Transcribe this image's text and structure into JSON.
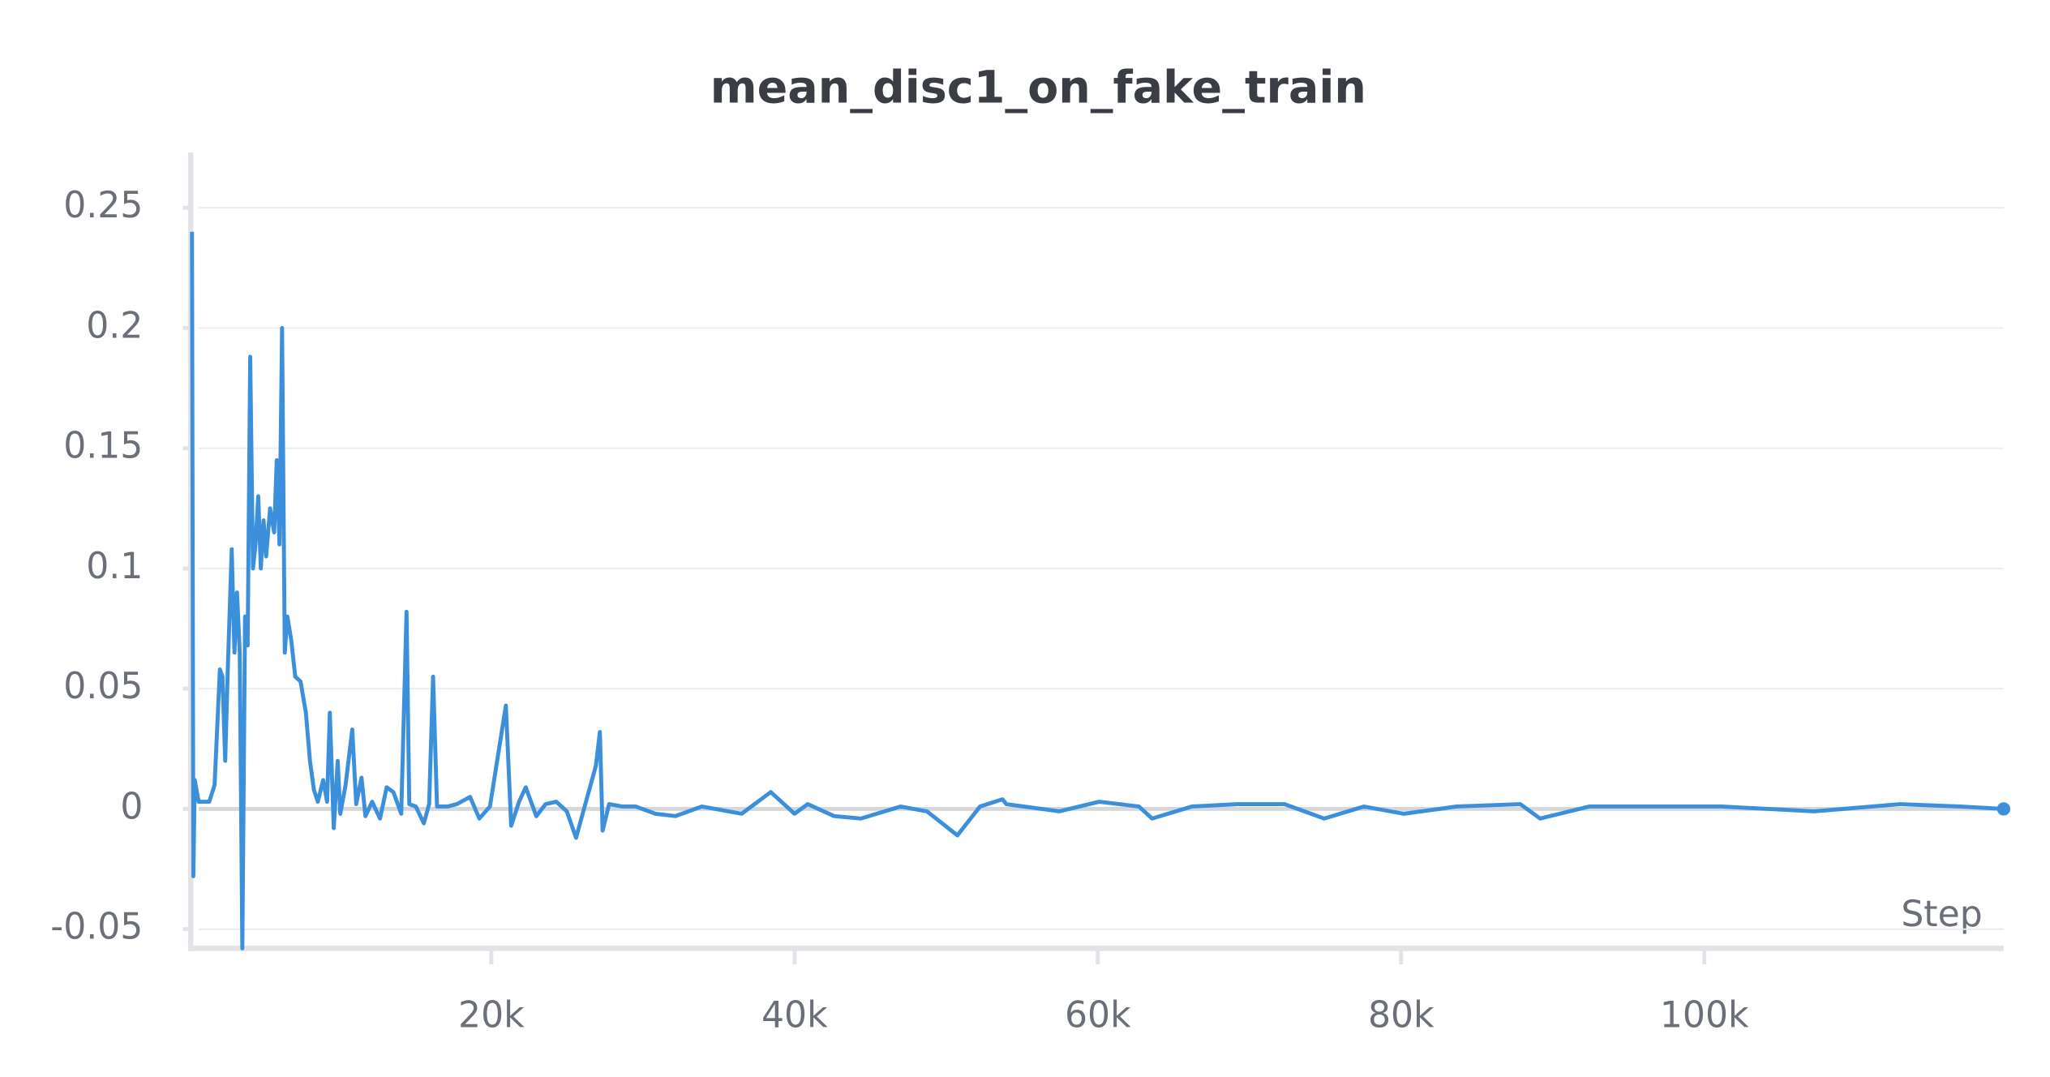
{
  "chart_data": {
    "type": "line",
    "title": "mean_disc1_on_fake_train",
    "x_label": "Step",
    "color": "#3b8fdb",
    "grid": true,
    "xlim": [
      0,
      119740
    ],
    "ylim": [
      -0.058,
      0.273
    ],
    "xticks": [
      {
        "value": 20000,
        "label": "20k"
      },
      {
        "value": 40000,
        "label": "40k"
      },
      {
        "value": 60000,
        "label": "60k"
      },
      {
        "value": 80000,
        "label": "80k"
      },
      {
        "value": 100000,
        "label": "100k"
      }
    ],
    "yticks": [
      -0.05,
      0,
      0.05,
      0.1,
      0.15,
      0.2,
      0.25
    ],
    "x": [
      260,
      350,
      440,
      700,
      1400,
      1750,
      2100,
      2270,
      2450,
      2620,
      2880,
      3060,
      3230,
      3410,
      3580,
      3760,
      3930,
      4100,
      4280,
      4450,
      4630,
      4800,
      4980,
      5150,
      5410,
      5680,
      5850,
      6030,
      6200,
      6380,
      6550,
      6810,
      7070,
      7420,
      7770,
      8040,
      8300,
      8560,
      8910,
      9170,
      9350,
      9610,
      9870,
      10040,
      10390,
      10830,
      11090,
      11440,
      11700,
      12140,
      12660,
      13100,
      13540,
      14060,
      14410,
      14590,
      15020,
      15550,
      15900,
      16160,
      16420,
      17120,
      17730,
      18600,
      19210,
      19910,
      20960,
      21310,
      21830,
      22270,
      22970,
      23580,
      24280,
      24980,
      25590,
      26200,
      26900,
      27160,
      27340,
      27770,
      28650,
      29520,
      30830,
      32140,
      33890,
      36510,
      38430,
      40000,
      40870,
      42620,
      44370,
      46990,
      48730,
      50740,
      52230,
      53710,
      53970,
      57470,
      60090,
      62710,
      63580,
      66200,
      69260,
      72310,
      74930,
      77550,
      80170,
      83670,
      87860,
      89170,
      92400,
      97640,
      101130,
      107250,
      112920,
      116850,
      119740
    ],
    "values": [
      0.24,
      -0.028,
      0.012,
      0.003,
      0.003,
      0.01,
      0.058,
      0.055,
      0.02,
      0.058,
      0.108,
      0.065,
      0.09,
      0.065,
      -0.058,
      0.08,
      0.068,
      0.188,
      0.1,
      0.11,
      0.13,
      0.1,
      0.12,
      0.105,
      0.125,
      0.115,
      0.145,
      0.11,
      0.2,
      0.065,
      0.08,
      0.07,
      0.055,
      0.053,
      0.04,
      0.02,
      0.008,
      0.003,
      0.012,
      0.003,
      0.04,
      -0.008,
      0.02,
      -0.002,
      0.01,
      0.033,
      0.002,
      0.013,
      -0.003,
      0.003,
      -0.004,
      0.009,
      0.007,
      -0.002,
      0.082,
      0.002,
      0.001,
      -0.006,
      0.002,
      0.055,
      0.001,
      0.001,
      0.002,
      0.005,
      -0.004,
      0.001,
      0.043,
      -0.007,
      0.003,
      0.009,
      -0.003,
      0.002,
      0.003,
      -0.001,
      -0.012,
      0.002,
      0.018,
      0.032,
      -0.009,
      0.002,
      0.001,
      0.001,
      -0.002,
      -0.003,
      0.001,
      -0.002,
      0.007,
      -0.002,
      0.002,
      -0.003,
      -0.004,
      0.001,
      -0.001,
      -0.011,
      0.001,
      0.004,
      0.002,
      -0.001,
      0.003,
      0.001,
      -0.004,
      0.001,
      0.002,
      0.002,
      -0.004,
      0.001,
      -0.002,
      0.001,
      0.002,
      -0.004,
      0.001,
      0.001,
      0.001,
      -0.001,
      0.002,
      0.001,
      0
    ]
  }
}
